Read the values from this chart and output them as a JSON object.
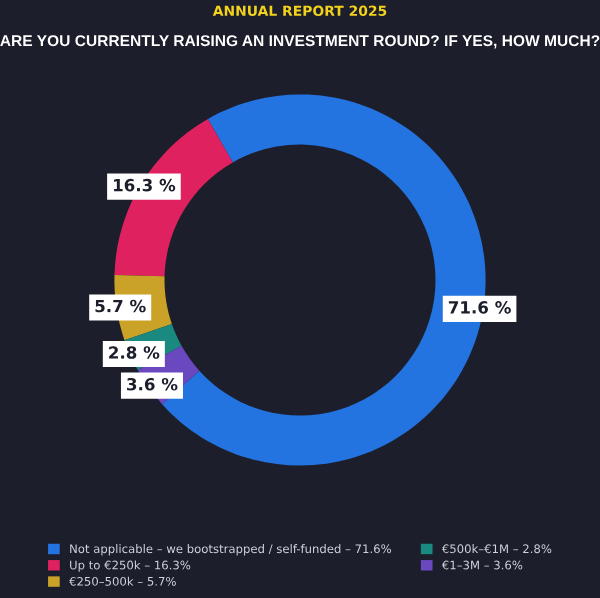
{
  "chart_data": {
    "type": "donut",
    "title": "ANNUAL REPORT 2025",
    "subtitle": "ARE YOU CURRENTLY RAISING AN INVESTMENT ROUND? IF YES, HOW MUCH?",
    "categories": [
      "Not applicable – we bootstrapped / self-funded – 71.6%",
      "Up to €250k – 16.3%",
      "€250–500k – 5.7%",
      "€500k–€1M – 2.8%",
      "€1–3M – 3.6%"
    ],
    "values": [
      71.6,
      16.3,
      5.7,
      2.8,
      3.6
    ],
    "value_labels": [
      "71.6 %",
      "16.3 %",
      "5.7 %",
      "2.8 %",
      "3.6 %"
    ],
    "colors": [
      "#2373e0",
      "#e0215f",
      "#c9a227",
      "#1a8a80",
      "#6a48c0"
    ],
    "legend": "bottom"
  }
}
